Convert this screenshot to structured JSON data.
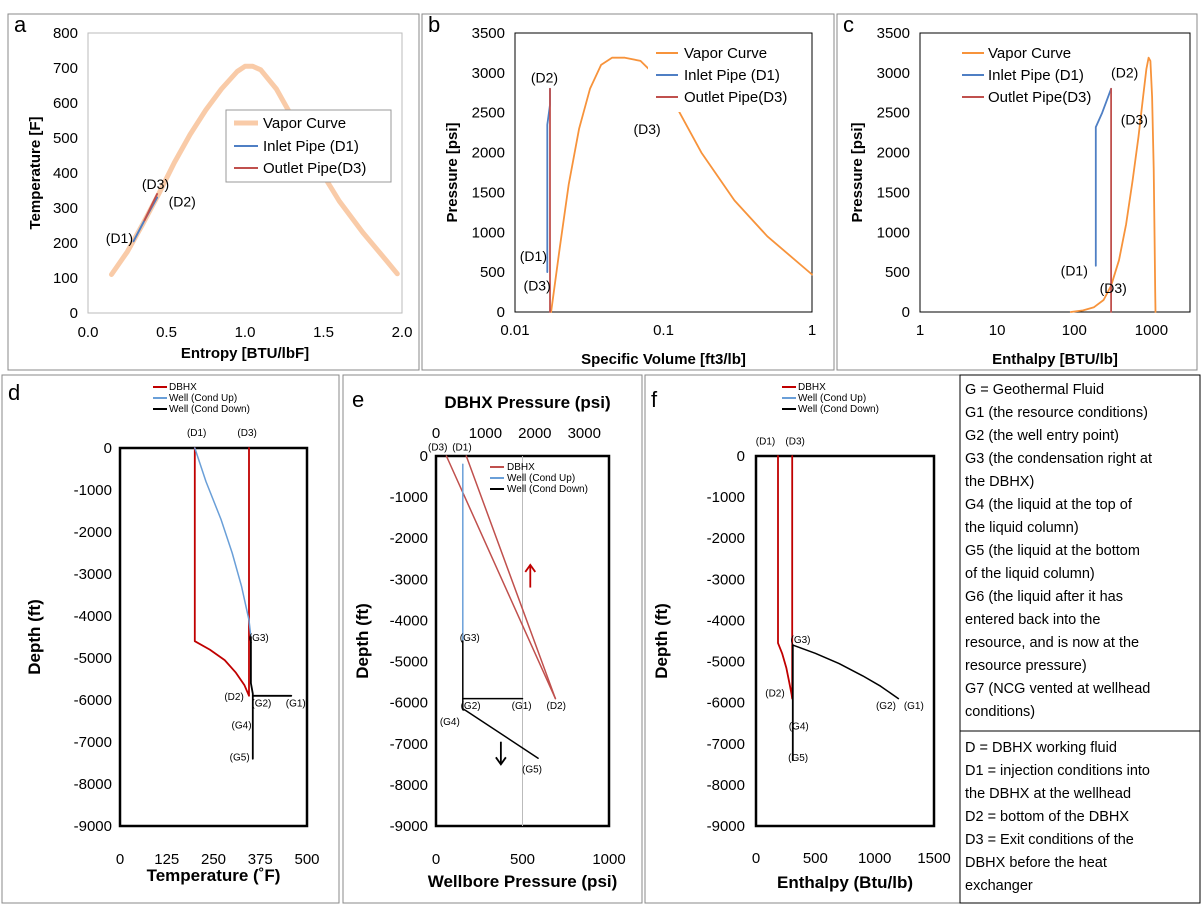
{
  "colors": {
    "vapor": "#f7933b",
    "vapor_a": "#f9cba8",
    "inlet": "#4f7fc4",
    "outlet": "#c0504d",
    "dbhx": "#c00000",
    "well_up": "#6a9fd8",
    "well_down": "#000000",
    "arrow_up": "#c00000",
    "arrow_down": "#000000"
  },
  "chart_data": [
    {
      "id": "a",
      "type": "line",
      "letter": "a",
      "xlabel": "Entropy [BTU/lbF]",
      "ylabel": "Temperature [F]",
      "xlim": [
        0,
        2
      ],
      "ylim": [
        0,
        800
      ],
      "xticks": [
        0,
        0.5,
        1,
        1.5,
        2
      ],
      "xtick_labels": [
        "0.0",
        "0.5",
        "1.0",
        "1.5",
        "2.0"
      ],
      "yticks": [
        0,
        100,
        200,
        300,
        400,
        500,
        600,
        700,
        800
      ],
      "ytick_labels": [
        "0",
        "100",
        "200",
        "300",
        "400",
        "500",
        "600",
        "700",
        "800"
      ],
      "legend": [
        "Vapor Curve",
        "Inlet Pipe (D1)",
        "Outlet Pipe(D3)"
      ],
      "series": [
        {
          "name": "Vapor Curve",
          "color_key": "vapor_a",
          "width": 5,
          "x": [
            0.15,
            0.25,
            0.35,
            0.45,
            0.55,
            0.65,
            0.75,
            0.85,
            0.95,
            1.0,
            1.05,
            1.1,
            1.2,
            1.3,
            1.45,
            1.6,
            1.75,
            1.9,
            1.97
          ],
          "y": [
            110,
            175,
            255,
            340,
            430,
            510,
            580,
            640,
            690,
            705,
            705,
            695,
            640,
            560,
            430,
            320,
            230,
            150,
            112
          ]
        },
        {
          "name": "Inlet Pipe (D1)",
          "color_key": "inlet",
          "width": 2,
          "x": [
            0.29,
            0.36,
            0.44
          ],
          "y": [
            205,
            265,
            330
          ]
        },
        {
          "name": "Outlet Pipe(D3)",
          "color_key": "outlet",
          "width": 2,
          "x": [
            0.36,
            0.44
          ],
          "y": [
            265,
            340
          ]
        }
      ],
      "annotations": [
        {
          "text": "(D3)",
          "x": 0.43,
          "y": 355
        },
        {
          "text": "(D2)",
          "x": 0.6,
          "y": 305
        },
        {
          "text": "(D1)",
          "x": 0.2,
          "y": 200
        }
      ]
    },
    {
      "id": "b",
      "type": "line",
      "letter": "b",
      "xscale": "log",
      "xlabel": "Specific Volume [ft3/lb]",
      "ylabel": "Pressure [psi]",
      "xlim": [
        0.01,
        1
      ],
      "ylim": [
        0,
        3500
      ],
      "xticks": [
        0.01,
        0.1,
        1
      ],
      "xtick_labels": [
        "0.01",
        "0.1",
        "1"
      ],
      "yticks": [
        0,
        500,
        1000,
        1500,
        2000,
        2500,
        3000,
        3500
      ],
      "ytick_labels": [
        "0",
        "500",
        "1000",
        "1500",
        "2000",
        "2500",
        "3000",
        "3500"
      ],
      "legend": [
        "Vapor Curve",
        "Inlet Pipe (D1)",
        "Outlet Pipe(D3)"
      ],
      "series": [
        {
          "name": "Vapor Curve",
          "color_key": "vapor",
          "width": 1.8,
          "x": [
            0.0175,
            0.02,
            0.023,
            0.027,
            0.032,
            0.038,
            0.045,
            0.055,
            0.07,
            0.09,
            0.12,
            0.18,
            0.3,
            0.5,
            1.0
          ],
          "y": [
            0,
            800,
            1600,
            2300,
            2800,
            3100,
            3190,
            3190,
            3150,
            2950,
            2600,
            2000,
            1400,
            950,
            470
          ]
        },
        {
          "name": "Inlet Pipe (D1)",
          "color_key": "inlet",
          "width": 1.8,
          "x": [
            0.0165,
            0.0165,
            0.0172,
            0.0172
          ],
          "y": [
            500,
            2350,
            2600,
            2800
          ]
        },
        {
          "name": "Outlet Pipe(D3)",
          "color_key": "outlet",
          "width": 1.8,
          "x": [
            0.0172,
            0.0172
          ],
          "y": [
            2800,
            0
          ]
        }
      ],
      "annotations": [
        {
          "text": "(D2)",
          "x": 0.0158,
          "y": 2880
        },
        {
          "text": "(D3)",
          "x": 0.0775,
          "y": 2230
        },
        {
          "text": "(D1)",
          "x": 0.0133,
          "y": 640
        },
        {
          "text": "(D3)",
          "x": 0.0141,
          "y": 270
        }
      ]
    },
    {
      "id": "c",
      "type": "line",
      "letter": "c",
      "xscale": "log",
      "xlabel": "Enthalpy [BTU/lb]",
      "ylabel": "Pressure [psi]",
      "xlim": [
        1,
        3162
      ],
      "ylim": [
        0,
        3500
      ],
      "xticks": [
        1,
        10,
        100,
        1000
      ],
      "xtick_labels": [
        "1",
        "10",
        "100",
        "1000"
      ],
      "yticks": [
        0,
        500,
        1000,
        1500,
        2000,
        2500,
        3000,
        3500
      ],
      "ytick_labels": [
        "0",
        "500",
        "1000",
        "1500",
        "2000",
        "2500",
        "3000",
        "3500"
      ],
      "legend": [
        "Vapor Curve",
        "Inlet Pipe (D1)",
        "Outlet Pipe(D3)"
      ],
      "series": [
        {
          "name": "Vapor Curve",
          "color_key": "vapor",
          "width": 1.8,
          "x": [
            90,
            130,
            180,
            240,
            300,
            380,
            470,
            570,
            680,
            780,
            860,
            920,
            970,
            1020,
            1070,
            1100,
            1120,
            1130
          ],
          "y": [
            0,
            20,
            60,
            150,
            330,
            650,
            1100,
            1650,
            2200,
            2700,
            3050,
            3190,
            3150,
            2700,
            1800,
            900,
            250,
            0
          ]
        },
        {
          "name": "Inlet Pipe (D1)",
          "color_key": "inlet",
          "width": 1.8,
          "x": [
            190,
            190,
            230,
            300
          ],
          "y": [
            580,
            2320,
            2500,
            2800
          ]
        },
        {
          "name": "Outlet Pipe(D3)",
          "color_key": "outlet",
          "width": 1.8,
          "x": [
            300,
            300
          ],
          "y": [
            2800,
            0
          ]
        }
      ],
      "annotations": [
        {
          "text": "(D2)",
          "x": 450,
          "y": 2940
        },
        {
          "text": "(D3)",
          "x": 600,
          "y": 2350
        },
        {
          "text": "(D1)",
          "x": 100,
          "y": 460
        },
        {
          "text": "(D3)",
          "x": 320,
          "y": 240
        }
      ]
    },
    {
      "id": "d",
      "type": "line",
      "letter": "d",
      "xlabel": "Temperature (˚F)",
      "ylabel": "Depth (ft)",
      "xlim": [
        0,
        500
      ],
      "ylim": [
        -9000,
        0
      ],
      "xticks": [
        0,
        125,
        250,
        375,
        500
      ],
      "xtick_labels": [
        "0",
        "125",
        "250",
        "375",
        "500"
      ],
      "yticks": [
        0,
        -1000,
        -2000,
        -3000,
        -4000,
        -5000,
        -6000,
        -7000,
        -8000,
        -9000
      ],
      "ytick_labels": [
        "0",
        "-1000",
        "-2000",
        "-3000",
        "-4000",
        "-5000",
        "-6000",
        "-7000",
        "-8000",
        "-9000"
      ],
      "legend": [
        "DBHX",
        "Well (Cond Up)",
        "Well (Cond Down)"
      ],
      "series": [
        {
          "name": "DBHX",
          "color_key": "dbhx",
          "width": 1.8,
          "x": [
            200,
            200,
            240,
            280,
            310,
            333,
            345,
            345
          ],
          "y": [
            0,
            -4600,
            -4800,
            -5050,
            -5350,
            -5650,
            -5900,
            0
          ]
        },
        {
          "name": "Well (Cond Up)",
          "color_key": "well_up",
          "width": 1.5,
          "x": [
            200,
            230,
            270,
            300,
            325,
            345,
            350
          ],
          "y": [
            0,
            -800,
            -1700,
            -2500,
            -3300,
            -4100,
            -4500
          ]
        },
        {
          "name": "Well (Cond Down)",
          "color_key": "well_down",
          "width": 1.8,
          "x": [
            350,
            350,
            355,
            355,
            358,
            458,
            355,
            355
          ],
          "y": [
            -4500,
            -5600,
            -5850,
            -5900,
            -5900,
            -5900,
            -5900,
            -7400
          ]
        }
      ],
      "annotations": [
        {
          "text": "(D1)",
          "x": 205,
          "y": 280
        },
        {
          "text": "(D3)",
          "x": 340,
          "y": 280
        },
        {
          "text": "(G3)",
          "x": 371,
          "y": -4600
        },
        {
          "text": "(D2)",
          "x": 305,
          "y": -6000
        },
        {
          "text": "(G2)",
          "x": 378,
          "y": -6160
        },
        {
          "text": "(G1)",
          "x": 470,
          "y": -6160
        },
        {
          "text": "(G4)",
          "x": 325,
          "y": -6680
        },
        {
          "text": "(G5)",
          "x": 320,
          "y": -7440
        }
      ]
    },
    {
      "id": "e",
      "type": "line",
      "letter": "e",
      "xlabel": "Wellbore Pressure (psi)",
      "x2label": "DBHX Pressure (psi)",
      "ylabel": "Depth (ft)",
      "xlim": [
        0,
        1000
      ],
      "x2lim": [
        0,
        3500
      ],
      "ylim": [
        -9000,
        0
      ],
      "xticks": [
        0,
        500,
        1000
      ],
      "xtick_labels": [
        "0",
        "500",
        "1000"
      ],
      "x2ticks": [
        0,
        1000,
        2000,
        3000
      ],
      "x2tick_labels": [
        "0",
        "1000",
        "2000",
        "3000"
      ],
      "yticks": [
        0,
        -1000,
        -2000,
        -3000,
        -4000,
        -5000,
        -6000,
        -7000,
        -8000,
        -9000
      ],
      "ytick_labels": [
        "0",
        "-1000",
        "-2000",
        "-3000",
        "-4000",
        "-5000",
        "-6000",
        "-7000",
        "-8000",
        "-9000"
      ],
      "legend": [
        "DBHX",
        "Well (Cond Up)",
        "Well (Cond Down)"
      ],
      "series": [
        {
          "name": "DBHX",
          "color_key": "outlet",
          "width": 1.5,
          "x": [
            60,
            690
          ],
          "y": [
            0,
            -5900
          ]
        },
        {
          "name": "DBHX",
          "color_key": "outlet",
          "width": 1.5,
          "x": [
            175,
            690
          ],
          "y": [
            0,
            -5900
          ]
        },
        {
          "name": "Well (Cond Up)",
          "color_key": "well_up",
          "width": 1.5,
          "x": [
            155,
            155
          ],
          "y": [
            -200,
            -4500
          ]
        },
        {
          "name": "Well (Cond Down)",
          "color_key": "well_down",
          "width": 1.5,
          "x": [
            155,
            155,
            500
          ],
          "y": [
            -4500,
            -5900,
            -5900
          ]
        },
        {
          "name": "Well (Cond Down)",
          "color_key": "well_down",
          "width": 1.5,
          "x": [
            155,
            155,
            175,
            590
          ],
          "y": [
            -5900,
            -6150,
            -6200,
            -7350
          ]
        }
      ],
      "annotations": [
        {
          "text": "(D3)",
          "x": 10,
          "y": 130
        },
        {
          "text": "(D1)",
          "x": 150,
          "y": 130
        },
        {
          "text": "(G3)",
          "x": 195,
          "y": -4500
        },
        {
          "text": "(G2)",
          "x": 200,
          "y": -6160
        },
        {
          "text": "(G1)",
          "x": 495,
          "y": -6160
        },
        {
          "text": "(D2)",
          "x": 695,
          "y": -6160
        },
        {
          "text": "(G4)",
          "x": 80,
          "y": -6540
        },
        {
          "text": "(G5)",
          "x": 555,
          "y": -7700
        }
      ],
      "arrows": [
        {
          "color_key": "arrow_up",
          "x": 545,
          "y1": -3200,
          "y2": -2650
        },
        {
          "color_key": "arrow_down",
          "x": 375,
          "y1": -6950,
          "y2": -7500
        }
      ]
    },
    {
      "id": "f",
      "type": "line",
      "letter": "f",
      "xlabel": "Enthalpy (Btu/lb)",
      "ylabel": "Depth (ft)",
      "xlim": [
        0,
        1500
      ],
      "ylim": [
        -9000,
        0
      ],
      "xticks": [
        0,
        500,
        1000,
        1500
      ],
      "xtick_labels": [
        "0",
        "500",
        "1000",
        "1500"
      ],
      "yticks": [
        0,
        -1000,
        -2000,
        -3000,
        -4000,
        -5000,
        -6000,
        -7000,
        -8000,
        -9000
      ],
      "ytick_labels": [
        "0",
        "-1000",
        "-2000",
        "-3000",
        "-4000",
        "-5000",
        "-6000",
        "-7000",
        "-8000",
        "-9000"
      ],
      "legend": [
        "DBHX",
        "Well (Cond Up)",
        "Well (Cond Down)"
      ],
      "series": [
        {
          "name": "DBHX",
          "color_key": "dbhx",
          "width": 1.8,
          "x": [
            185,
            185,
            220,
            255,
            280,
            300,
            305,
            305
          ],
          "y": [
            0,
            -4550,
            -4800,
            -5150,
            -5500,
            -5800,
            -5900,
            0
          ]
        },
        {
          "name": "Well (Cond Down)",
          "color_key": "well_down",
          "width": 1.8,
          "x": [
            310,
            310
          ],
          "y": [
            -4600,
            -7400
          ]
        },
        {
          "name": "Well (Cond Down)",
          "color_key": "well_down",
          "width": 1.5,
          "x": [
            310,
            500,
            700,
            900,
            1050,
            1200
          ],
          "y": [
            -4600,
            -4800,
            -5050,
            -5350,
            -5600,
            -5900
          ]
        }
      ],
      "annotations": [
        {
          "text": "(D1)",
          "x": 80,
          "y": 280
        },
        {
          "text": "(D3)",
          "x": 330,
          "y": 280
        },
        {
          "text": "(G3)",
          "x": 375,
          "y": -4550
        },
        {
          "text": "(D2)",
          "x": 160,
          "y": -5850
        },
        {
          "text": "(G2)",
          "x": 1095,
          "y": -6160
        },
        {
          "text": "(G1)",
          "x": 1330,
          "y": -6160
        },
        {
          "text": "(G4)",
          "x": 360,
          "y": -6650
        },
        {
          "text": "(G5)",
          "x": 355,
          "y": -7420
        }
      ]
    }
  ],
  "key_g": [
    "G = Geothermal Fluid",
    "G1 (the resource conditions)",
    "G2 (the well entry point)",
    "G3 (the condensation right at",
    "the DBHX)",
    "G4 (the liquid at the top of",
    "the liquid column)",
    "G5 (the liquid at the bottom",
    "of the liquid column)",
    "G6 (the liquid after it has",
    "entered back into the",
    "resource, and is now at the",
    "resource pressure)",
    "G7 (NCG vented at wellhead",
    "conditions)"
  ],
  "key_d": [
    "D = DBHX working fluid",
    "D1 = injection conditions into",
    "the DBHX at the wellhead",
    "D2 = bottom of the DBHX",
    "D3 = Exit conditions of the",
    "DBHX before the heat",
    "exchanger"
  ]
}
